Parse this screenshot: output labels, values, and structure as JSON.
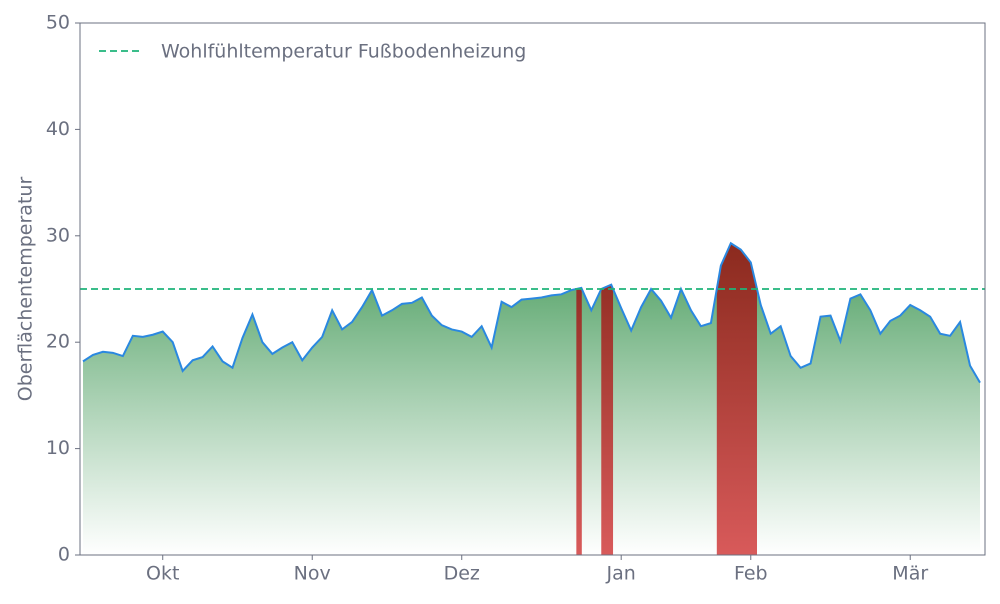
{
  "chart_data": {
    "type": "area",
    "y_label": "Oberflächentemperatur",
    "categories": [
      null,
      null,
      null,
      null,
      null,
      null,
      null,
      null,
      "Okt",
      null,
      null,
      null,
      null,
      null,
      null,
      null,
      null,
      null,
      null,
      null,
      null,
      null,
      null,
      "Nov",
      null,
      null,
      null,
      null,
      null,
      null,
      null,
      null,
      null,
      null,
      null,
      null,
      null,
      null,
      "Dez",
      null,
      null,
      null,
      null,
      null,
      null,
      null,
      null,
      null,
      null,
      null,
      null,
      null,
      null,
      null,
      "Jan",
      null,
      null,
      null,
      null,
      null,
      null,
      null,
      null,
      null,
      null,
      null,
      null,
      "Feb",
      null,
      null,
      null,
      null,
      null,
      null,
      null,
      null,
      null,
      null,
      null,
      null,
      null,
      null,
      null,
      "Mär",
      null,
      null,
      null,
      null,
      null,
      null,
      null
    ],
    "values": [
      18.2,
      18.8,
      19.1,
      19.0,
      18.7,
      20.6,
      20.5,
      20.7,
      21.0,
      20.0,
      17.3,
      18.3,
      18.6,
      19.6,
      18.2,
      17.6,
      20.4,
      22.6,
      20.0,
      18.9,
      19.5,
      20.0,
      18.3,
      19.5,
      20.5,
      23.0,
      21.2,
      21.9,
      23.3,
      24.9,
      22.5,
      23.0,
      23.6,
      23.7,
      24.2,
      22.5,
      21.6,
      21.2,
      21.0,
      20.5,
      21.5,
      19.5,
      23.8,
      23.3,
      24.0,
      24.1,
      24.2,
      24.4,
      24.5,
      24.9,
      25.1,
      23.0,
      25.0,
      25.4,
      23.2,
      21.1,
      23.3,
      25.0,
      23.9,
      22.3,
      25.0,
      23.0,
      21.5,
      21.8,
      27.2,
      29.3,
      28.7,
      27.5,
      23.5,
      20.8,
      21.5,
      18.7,
      17.6,
      18.0,
      22.4,
      22.5,
      20.1,
      24.1,
      24.5,
      23.0,
      20.8,
      22.0,
      22.5,
      23.5,
      23.0,
      22.4,
      20.8,
      20.6,
      21.9,
      17.8,
      16.2
    ],
    "color": "#2a88e0",
    "fill_color": "#4a9d5e",
    "above_color": "#8b2a1e",
    "threshold": {
      "value": 25,
      "label": "Wohlfühltemperatur Fußbodenheizung",
      "color": "#1fb47a"
    },
    "ylim": [
      0,
      50
    ],
    "yticks": [
      0,
      10,
      20,
      30,
      40,
      50
    ]
  }
}
